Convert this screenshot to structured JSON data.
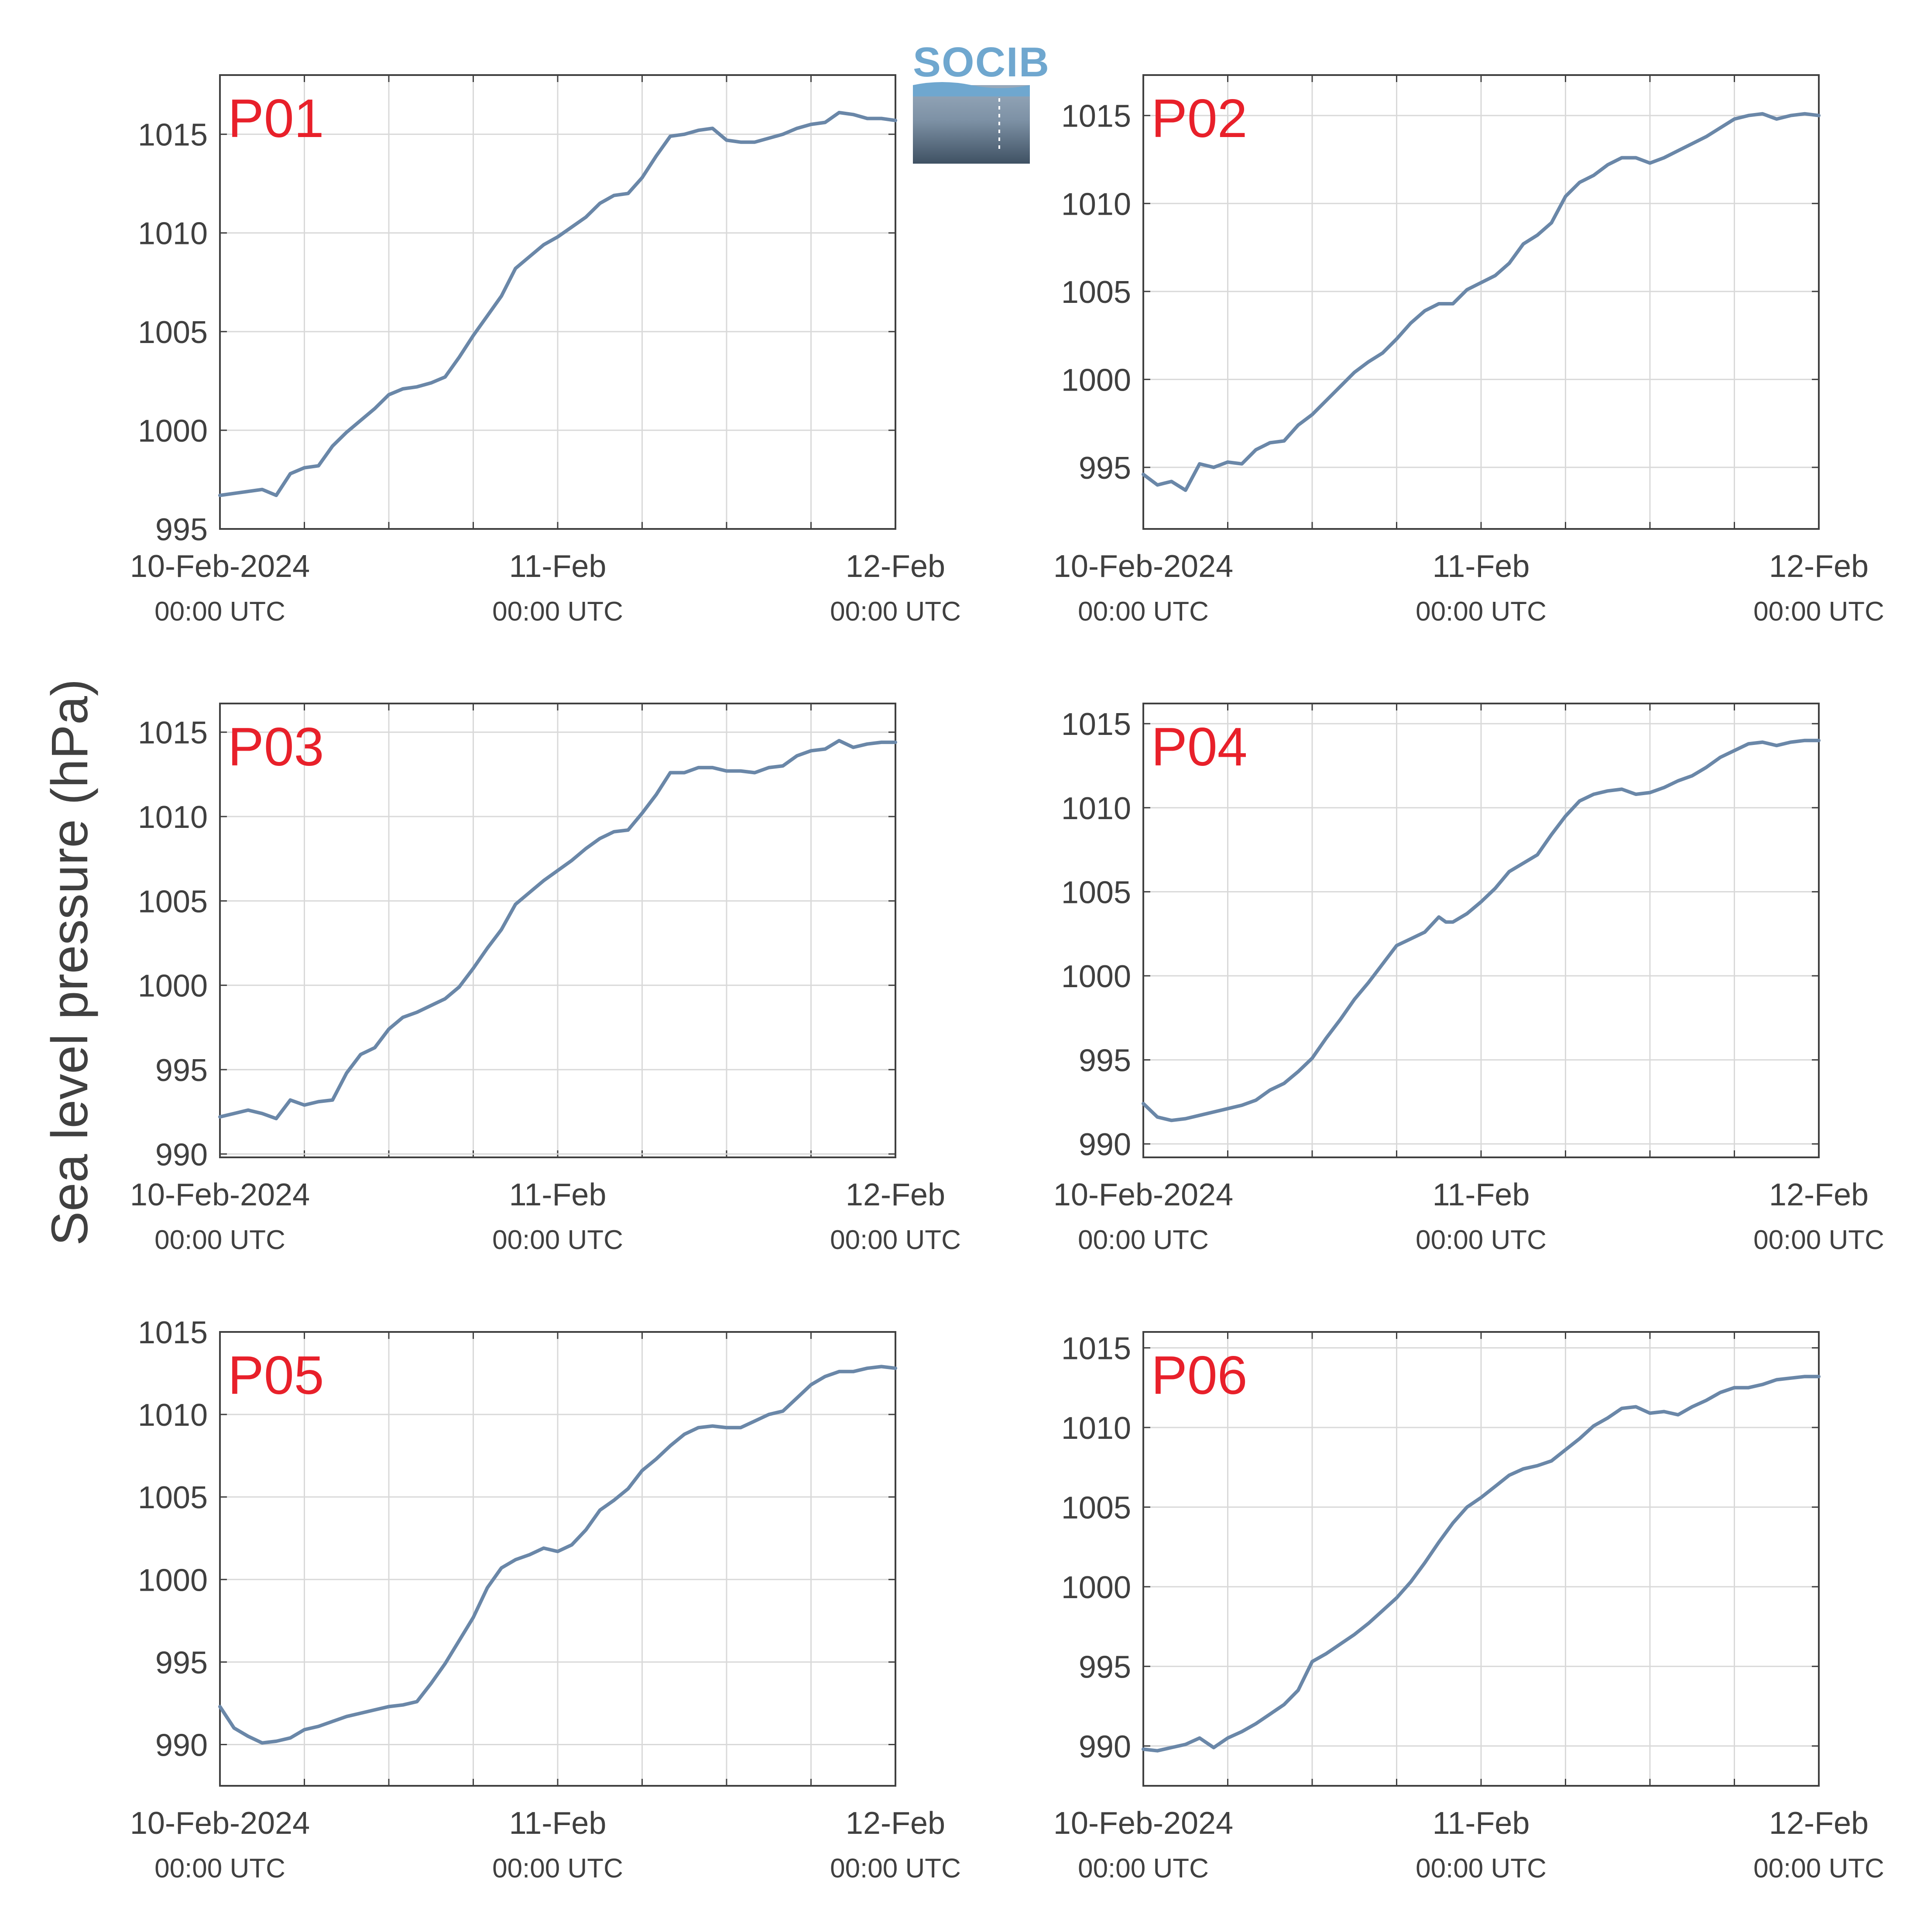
{
  "figure": {
    "ylabel": "Sea level pressure (hPa)",
    "logo_text": "SOCIB"
  },
  "colors": {
    "line": "#6a87a8",
    "panel_label": "#e8202a",
    "grid": "#d9d9d9",
    "axis": "#404040",
    "text": "#404040"
  },
  "chart_data": [
    {
      "type": "line",
      "label": "P01",
      "x_tick_labels": [
        {
          "day": "10-Feb-2024",
          "time": "00:00 UTC"
        },
        {
          "day": "11-Feb",
          "time": "00:00 UTC"
        },
        {
          "day": "12-Feb",
          "time": "00:00 UTC"
        }
      ],
      "xlim": [
        0,
        48
      ],
      "ylim": [
        995,
        1018
      ],
      "yticks": [
        995,
        1000,
        1005,
        1010,
        1015
      ],
      "x": [
        0,
        1,
        2,
        3,
        4,
        5,
        6,
        7,
        8,
        9,
        10,
        11,
        12,
        13,
        14,
        15,
        16,
        17,
        18,
        19,
        20,
        21,
        22,
        23,
        24,
        25,
        26,
        27,
        28,
        29,
        30,
        31,
        32,
        33,
        34,
        35,
        36,
        37,
        38,
        39,
        40,
        41,
        42,
        43,
        44,
        45,
        46,
        47,
        48
      ],
      "y": [
        996.7,
        996.8,
        996.9,
        997.0,
        996.7,
        997.8,
        998.1,
        998.2,
        999.2,
        999.9,
        1000.5,
        1001.1,
        1001.8,
        1002.1,
        1002.2,
        1002.4,
        1002.7,
        1003.7,
        1004.8,
        1005.8,
        1006.8,
        1008.2,
        1008.8,
        1009.4,
        1009.8,
        1010.3,
        1010.8,
        1011.5,
        1011.9,
        1012.0,
        1012.8,
        1013.9,
        1014.9,
        1015.0,
        1015.2,
        1015.3,
        1014.7,
        1014.6,
        1014.6,
        1014.8,
        1015.0,
        1015.3,
        1015.5,
        1015.6,
        1016.1,
        1016.0,
        1015.8,
        1015.8,
        1015.7
      ]
    },
    {
      "type": "line",
      "label": "P02",
      "x_tick_labels": [
        {
          "day": "10-Feb-2024",
          "time": "00:00 UTC"
        },
        {
          "day": "11-Feb",
          "time": "00:00 UTC"
        },
        {
          "day": "12-Feb",
          "time": "00:00 UTC"
        }
      ],
      "xlim": [
        0,
        48
      ],
      "ylim": [
        991.5,
        1017.3
      ],
      "yticks": [
        995,
        1000,
        1005,
        1010,
        1015
      ],
      "x": [
        0,
        1,
        2,
        3,
        4,
        5,
        6,
        7,
        8,
        9,
        10,
        11,
        12,
        13,
        14,
        15,
        16,
        17,
        18,
        19,
        20,
        21,
        22,
        23,
        24,
        25,
        26,
        27,
        28,
        29,
        30,
        31,
        32,
        33,
        34,
        35,
        36,
        37,
        38,
        39,
        40,
        41,
        42,
        43,
        44,
        45,
        46,
        47,
        48
      ],
      "y": [
        994.6,
        994.0,
        994.2,
        993.7,
        995.2,
        995.0,
        995.3,
        995.2,
        996.0,
        996.4,
        996.5,
        997.4,
        998.0,
        998.8,
        999.6,
        1000.4,
        1001.0,
        1001.5,
        1002.3,
        1003.2,
        1003.9,
        1004.3,
        1004.3,
        1005.1,
        1005.5,
        1005.9,
        1006.6,
        1007.7,
        1008.2,
        1008.9,
        1010.4,
        1011.2,
        1011.6,
        1012.2,
        1012.6,
        1012.6,
        1012.3,
        1012.6,
        1013.0,
        1013.4,
        1013.8,
        1014.3,
        1014.8,
        1015.0,
        1015.1,
        1014.8,
        1015.0,
        1015.1,
        1015.0
      ]
    },
    {
      "type": "line",
      "label": "P03",
      "x_tick_labels": [
        {
          "day": "10-Feb-2024",
          "time": "00:00 UTC"
        },
        {
          "day": "11-Feb",
          "time": "00:00 UTC"
        },
        {
          "day": "12-Feb",
          "time": "00:00 UTC"
        }
      ],
      "xlim": [
        0,
        48
      ],
      "ylim": [
        989.8,
        1016.7
      ],
      "yticks": [
        990,
        995,
        1000,
        1005,
        1010,
        1015
      ],
      "x": [
        0,
        1,
        2,
        3,
        4,
        5,
        6,
        7,
        8,
        9,
        10,
        11,
        12,
        13,
        14,
        15,
        16,
        17,
        18,
        19,
        20,
        21,
        22,
        23,
        24,
        25,
        26,
        27,
        28,
        29,
        30,
        31,
        32,
        33,
        34,
        35,
        36,
        37,
        38,
        39,
        40,
        41,
        42,
        43,
        44,
        45,
        46,
        47,
        48
      ],
      "y": [
        992.2,
        992.4,
        992.6,
        992.4,
        992.1,
        993.2,
        992.9,
        993.1,
        993.2,
        994.8,
        995.9,
        996.3,
        997.4,
        998.1,
        998.4,
        998.8,
        999.2,
        999.9,
        1001.0,
        1002.2,
        1003.3,
        1004.8,
        1005.5,
        1006.2,
        1006.8,
        1007.4,
        1008.1,
        1008.7,
        1009.1,
        1009.2,
        1010.2,
        1011.3,
        1012.6,
        1012.6,
        1012.9,
        1012.9,
        1012.7,
        1012.7,
        1012.6,
        1012.9,
        1013.0,
        1013.6,
        1013.9,
        1014.0,
        1014.5,
        1014.1,
        1014.3,
        1014.4,
        1014.4
      ]
    },
    {
      "type": "line",
      "label": "P04",
      "x_tick_labels": [
        {
          "day": "10-Feb-2024",
          "time": "00:00 UTC"
        },
        {
          "day": "11-Feb",
          "time": "00:00 UTC"
        },
        {
          "day": "12-Feb",
          "time": "00:00 UTC"
        }
      ],
      "xlim": [
        0,
        48
      ],
      "ylim": [
        989.2,
        1016.2
      ],
      "yticks": [
        990,
        995,
        1000,
        1005,
        1010,
        1015
      ],
      "x": [
        0,
        1,
        2,
        3,
        4,
        5,
        6,
        7,
        8,
        9,
        10,
        11,
        12,
        13,
        14,
        15,
        16,
        17,
        18,
        19,
        20,
        21,
        21.5,
        22,
        23,
        24,
        25,
        26,
        27,
        28,
        29,
        30,
        31,
        32,
        33,
        34,
        35,
        36,
        37,
        38,
        39,
        40,
        41,
        42,
        43,
        44,
        45,
        46,
        47,
        48
      ],
      "y": [
        992.4,
        991.6,
        991.4,
        991.5,
        991.7,
        991.9,
        992.1,
        992.3,
        992.6,
        993.2,
        993.6,
        994.3,
        995.1,
        996.3,
        997.4,
        998.6,
        999.6,
        1000.7,
        1001.8,
        1002.2,
        1002.6,
        1003.5,
        1003.2,
        1003.2,
        1003.7,
        1004.4,
        1005.2,
        1006.2,
        1006.7,
        1007.2,
        1008.4,
        1009.5,
        1010.4,
        1010.8,
        1011.0,
        1011.1,
        1010.8,
        1010.9,
        1011.2,
        1011.6,
        1011.9,
        1012.4,
        1013.0,
        1013.4,
        1013.8,
        1013.9,
        1013.7,
        1013.9,
        1014.0,
        1014.0
      ]
    },
    {
      "type": "line",
      "label": "P05",
      "x_tick_labels": [
        {
          "day": "10-Feb-2024",
          "time": "00:00 UTC"
        },
        {
          "day": "11-Feb",
          "time": "00:00 UTC"
        },
        {
          "day": "12-Feb",
          "time": "00:00 UTC"
        }
      ],
      "xlim": [
        0,
        48
      ],
      "ylim": [
        987.5,
        1015.0
      ],
      "yticks": [
        990,
        995,
        1000,
        1005,
        1010,
        1015
      ],
      "x": [
        0,
        1,
        2,
        3,
        4,
        5,
        6,
        7,
        8,
        9,
        10,
        11,
        12,
        13,
        14,
        15,
        16,
        17,
        18,
        19,
        20,
        21,
        22,
        23,
        24,
        25,
        26,
        27,
        28,
        29,
        30,
        31,
        32,
        33,
        34,
        35,
        36,
        37,
        38,
        39,
        40,
        41,
        42,
        43,
        44,
        45,
        46,
        47,
        48
      ],
      "y": [
        992.3,
        991.0,
        990.5,
        990.1,
        990.2,
        990.4,
        990.9,
        991.1,
        991.4,
        991.7,
        991.9,
        992.1,
        992.3,
        992.4,
        992.6,
        993.7,
        994.9,
        996.3,
        997.7,
        999.5,
        1000.7,
        1001.2,
        1001.5,
        1001.9,
        1001.7,
        1002.1,
        1003.0,
        1004.2,
        1004.8,
        1005.5,
        1006.6,
        1007.3,
        1008.1,
        1008.8,
        1009.2,
        1009.3,
        1009.2,
        1009.2,
        1009.6,
        1010.0,
        1010.2,
        1011.0,
        1011.8,
        1012.3,
        1012.6,
        1012.6,
        1012.8,
        1012.9,
        1012.8
      ]
    },
    {
      "type": "line",
      "label": "P06",
      "x_tick_labels": [
        {
          "day": "10-Feb-2024",
          "time": "00:00 UTC"
        },
        {
          "day": "11-Feb",
          "time": "00:00 UTC"
        },
        {
          "day": "12-Feb",
          "time": "00:00 UTC"
        }
      ],
      "xlim": [
        0,
        48
      ],
      "ylim": [
        987.5,
        1016.0
      ],
      "yticks": [
        990,
        995,
        1000,
        1005,
        1010,
        1015
      ],
      "x": [
        0,
        1,
        2,
        3,
        4,
        5,
        6,
        7,
        8,
        9,
        10,
        11,
        12,
        13,
        14,
        15,
        16,
        17,
        18,
        19,
        20,
        21,
        22,
        23,
        24,
        25,
        26,
        27,
        28,
        29,
        30,
        31,
        32,
        33,
        34,
        35,
        36,
        37,
        38,
        39,
        40,
        41,
        42,
        43,
        44,
        45,
        46,
        47,
        48
      ],
      "y": [
        989.8,
        989.7,
        989.9,
        990.1,
        990.5,
        989.9,
        990.5,
        990.9,
        991.4,
        992.0,
        992.6,
        993.5,
        995.3,
        995.8,
        996.4,
        997.0,
        997.7,
        998.5,
        999.3,
        1000.3,
        1001.5,
        1002.8,
        1004.0,
        1005.0,
        1005.6,
        1006.3,
        1007.0,
        1007.4,
        1007.6,
        1007.9,
        1008.6,
        1009.3,
        1010.1,
        1010.6,
        1011.2,
        1011.3,
        1010.9,
        1011.0,
        1010.8,
        1011.3,
        1011.7,
        1012.2,
        1012.5,
        1012.5,
        1012.7,
        1013.0,
        1013.1,
        1013.2,
        1013.2
      ]
    }
  ]
}
